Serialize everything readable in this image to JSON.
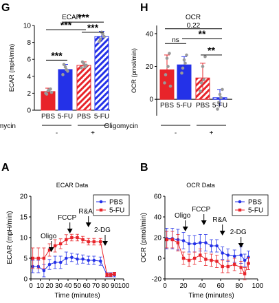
{
  "figure": {
    "panel_G_letter": "G",
    "panel_H_letter": "H",
    "panel_A_letter": "A",
    "panel_B_letter": "B"
  },
  "colors": {
    "pbs_red": "#e8242a",
    "fu_blue": "#2431e8",
    "hatch_red": "#e8242a",
    "hatch_blue": "#2431e8",
    "dot_grey": "#9a9a9a"
  },
  "chart_data": [
    {
      "id": "G",
      "type": "bar",
      "title": "ECAR",
      "ylabel": "ECAR (mpH/min)",
      "xlabel": "",
      "ylim": [
        0,
        10
      ],
      "yticks": [
        0,
        2,
        4,
        6,
        8,
        10
      ],
      "categories": [
        "PBS",
        "5-FU",
        "PBS",
        "5-FU"
      ],
      "values": [
        2.2,
        4.8,
        5.3,
        8.7
      ],
      "errors": [
        0.4,
        0.6,
        0.4,
        0.6
      ],
      "hatched": [
        false,
        false,
        true,
        true
      ],
      "points": [
        [
          2.0,
          2.3,
          2.5,
          1.9,
          2.4,
          2.1
        ],
        [
          4.2,
          5.1,
          4.6,
          5.4,
          4.8
        ],
        [
          5.0,
          5.5,
          5.3,
          5.7,
          5.1
        ],
        [
          8.1,
          9.2,
          8.7,
          8.4,
          9.0
        ]
      ],
      "group_label": "Oligomycin",
      "group_signs": [
        "-",
        "+"
      ],
      "significance": [
        {
          "label": "***",
          "from": 0,
          "to": 1,
          "y": 5.9
        },
        {
          "label": "***",
          "from": 2,
          "to": 3,
          "y": 9.2
        },
        {
          "label": "***",
          "from": 0,
          "to": 2,
          "y": 9.5
        },
        {
          "label": "***",
          "from": 1,
          "to": 3,
          "y": 10.4
        }
      ]
    },
    {
      "id": "H",
      "type": "bar",
      "title": "OCR",
      "ylabel": "OCR (pmol/min)",
      "xlabel": "",
      "ylim": [
        -10,
        45
      ],
      "yticks": [
        0,
        20,
        40
      ],
      "categories": [
        "PBS",
        "5-FU",
        "PBS",
        "5-FU"
      ],
      "values": [
        18,
        21,
        13,
        1
      ],
      "errors": [
        9,
        5,
        9,
        5
      ],
      "hatched": [
        false,
        false,
        true,
        true
      ],
      "points": [
        [
          10,
          25,
          28,
          15,
          20,
          8
        ],
        [
          16,
          24,
          27,
          19,
          22
        ],
        [
          5,
          20,
          26,
          10,
          12
        ],
        [
          -6,
          3,
          6,
          -2,
          1
        ]
      ],
      "group_label": "Oligomycin",
      "group_signs": [
        "-",
        "+"
      ],
      "significance": [
        {
          "label": "0.22",
          "from": 0,
          "to": 3,
          "y": 43
        },
        {
          "label": "ns",
          "from": 0,
          "to": 1,
          "y": 34
        },
        {
          "label": "**",
          "from": 1,
          "to": 3,
          "y": 37
        },
        {
          "label": "**",
          "from": 2,
          "to": 3,
          "y": 27
        }
      ]
    },
    {
      "id": "A",
      "type": "line",
      "title": "ECAR Data",
      "xlabel": "Time (minutes)",
      "ylabel": "ECAR (mpH/min)",
      "xlim": [
        0,
        100
      ],
      "ylim": [
        0,
        20
      ],
      "xticks": [
        0,
        10,
        20,
        30,
        40,
        50,
        60,
        70,
        80,
        90,
        100
      ],
      "yticks": [
        0,
        5,
        10,
        15,
        20
      ],
      "series": [
        {
          "name": "PBS",
          "x": [
            2,
            8,
            14,
            20,
            26,
            32,
            38,
            44,
            50,
            56,
            62,
            68,
            75,
            82,
            86,
            90
          ],
          "y": [
            3.0,
            3.0,
            2.0,
            3.5,
            4.0,
            4.0,
            5.0,
            5.2,
            4.8,
            4.8,
            4.5,
            4.5,
            4.3,
            1.0,
            1.0,
            1.0
          ],
          "err": [
            1.5,
            1.5,
            1.5,
            1.2,
            1.5,
            1.5,
            1.5,
            1.0,
            1.2,
            1.0,
            1.0,
            1.0,
            1.0,
            0.5,
            0.5,
            0.5
          ]
        },
        {
          "name": "5-FU",
          "x": [
            2,
            8,
            14,
            20,
            26,
            32,
            38,
            44,
            50,
            56,
            62,
            68,
            75,
            82,
            86,
            90
          ],
          "y": [
            5.0,
            5.0,
            5.0,
            7.0,
            8.0,
            8.5,
            9.5,
            10.0,
            10.0,
            9.5,
            9.0,
            9.0,
            9.0,
            1.0,
            1.0,
            1.2
          ],
          "err": [
            2.5,
            2.5,
            2.5,
            1.5,
            1.5,
            1.2,
            1.2,
            0.8,
            0.8,
            0.8,
            0.8,
            0.8,
            0.8,
            0.4,
            0.4,
            0.4
          ]
        }
      ],
      "legend": "top-right",
      "annotations": [
        {
          "label": "Oligo",
          "x": 22,
          "y": 6.5
        },
        {
          "label": "FCCP",
          "x": 42,
          "y": 11.0
        },
        {
          "label": "R&A",
          "x": 62,
          "y": 12.5
        },
        {
          "label": "2-DG",
          "x": 80,
          "y": 8.0
        }
      ]
    },
    {
      "id": "B",
      "type": "line",
      "title": "OCR Data",
      "xlabel": "Time (minutes)",
      "ylabel": "OCR (pmol/min)",
      "xlim": [
        0,
        100
      ],
      "ylim": [
        -20,
        60
      ],
      "xticks": [
        0,
        20,
        40,
        60,
        80,
        100
      ],
      "yticks": [
        -20,
        0,
        20,
        40,
        60
      ],
      "series": [
        {
          "name": "PBS",
          "x": [
            2,
            8,
            14,
            20,
            26,
            32,
            38,
            44,
            50,
            56,
            62,
            68,
            75,
            82,
            86,
            90
          ],
          "y": [
            19,
            19,
            18,
            17,
            14,
            14,
            15,
            15,
            12,
            12,
            5,
            3,
            2,
            3,
            -2,
            1
          ],
          "err": [
            10,
            10,
            10,
            8,
            8,
            8,
            8,
            8,
            6,
            6,
            6,
            6,
            6,
            8,
            6,
            6
          ]
        },
        {
          "name": "5-FU",
          "x": [
            2,
            8,
            14,
            20,
            26,
            32,
            38,
            44,
            50,
            56,
            62,
            68,
            75,
            82,
            86,
            90
          ],
          "y": [
            18,
            18,
            15,
            0,
            -2,
            0,
            3,
            -1,
            -2,
            -3,
            -8,
            -8,
            -6,
            -9,
            -15,
            -5
          ],
          "err": [
            8,
            8,
            8,
            6,
            6,
            6,
            6,
            6,
            6,
            6,
            6,
            6,
            6,
            6,
            6,
            6
          ]
        }
      ],
      "legend": "top-right",
      "annotations": [
        {
          "label": "Oligo",
          "x": 22,
          "y": 26
        },
        {
          "label": "FCCP",
          "x": 42,
          "y": 32
        },
        {
          "label": "R&A",
          "x": 62,
          "y": 22
        },
        {
          "label": "2-DG",
          "x": 82,
          "y": 10
        }
      ]
    }
  ]
}
